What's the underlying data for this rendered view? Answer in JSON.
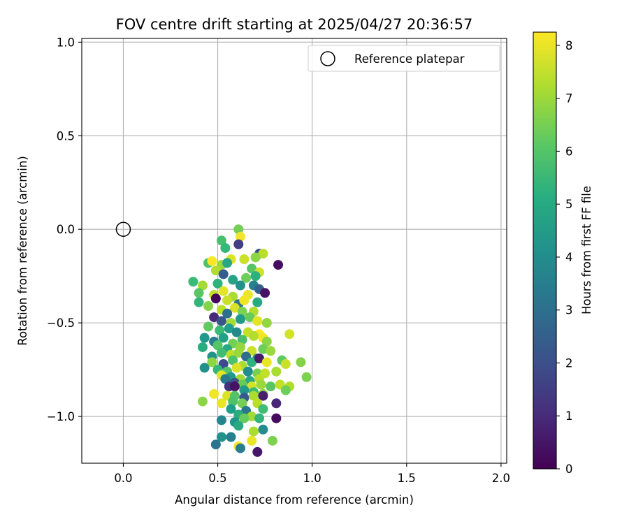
{
  "chart_data": {
    "type": "scatter",
    "title": "FOV centre drift starting at 2025/04/27 20:36:57",
    "xlabel": "Angular distance from reference (arcmin)",
    "ylabel": "Rotation from reference (arcmin)",
    "xlim": [
      -0.22,
      2.03
    ],
    "ylim": [
      -1.25,
      1.02
    ],
    "xticks": [
      0.0,
      0.5,
      1.0,
      1.5,
      2.0
    ],
    "xtick_labels": [
      "0.0",
      "0.5",
      "1.0",
      "1.5",
      "2.0"
    ],
    "yticks": [
      -1.0,
      -0.5,
      0.0,
      0.5,
      1.0
    ],
    "ytick_labels": [
      "−1.0",
      "−0.5",
      "0.0",
      "0.5",
      "1.0"
    ],
    "grid": true,
    "colormap": "viridis",
    "colorbar": {
      "label": "Hours from first FF file",
      "range": [
        0,
        8.25
      ],
      "ticks": [
        0,
        1,
        2,
        3,
        4,
        5,
        6,
        7,
        8
      ],
      "tick_labels": [
        "0",
        "1",
        "2",
        "3",
        "4",
        "5",
        "6",
        "7",
        "8"
      ]
    },
    "legend": {
      "position": "top-right",
      "entries": [
        "Reference platepar"
      ]
    },
    "reference": {
      "x": 0.0,
      "y": 0.0
    },
    "points": [
      {
        "x": 0.61,
        "y": 0.0,
        "c": 6.5
      },
      {
        "x": 0.62,
        "y": -0.04,
        "c": 8.1
      },
      {
        "x": 0.61,
        "y": -0.08,
        "c": 1.5
      },
      {
        "x": 0.52,
        "y": -0.06,
        "c": 5.8
      },
      {
        "x": 0.54,
        "y": -0.1,
        "c": 5.5
      },
      {
        "x": 0.72,
        "y": -0.13,
        "c": 2.0
      },
      {
        "x": 0.74,
        "y": -0.13,
        "c": 7.4
      },
      {
        "x": 0.7,
        "y": -0.15,
        "c": 6.8
      },
      {
        "x": 0.64,
        "y": -0.16,
        "c": 7.6
      },
      {
        "x": 0.57,
        "y": -0.16,
        "c": 7.8
      },
      {
        "x": 0.45,
        "y": -0.18,
        "c": 5.9
      },
      {
        "x": 0.47,
        "y": -0.17,
        "c": 8.2
      },
      {
        "x": 0.52,
        "y": -0.19,
        "c": 7.0
      },
      {
        "x": 0.55,
        "y": -0.18,
        "c": 4.9
      },
      {
        "x": 0.82,
        "y": -0.19,
        "c": 0.3
      },
      {
        "x": 0.68,
        "y": -0.21,
        "c": 6.0
      },
      {
        "x": 0.49,
        "y": -0.22,
        "c": 7.3
      },
      {
        "x": 0.53,
        "y": -0.24,
        "c": 2.4
      },
      {
        "x": 0.72,
        "y": -0.23,
        "c": 7.7
      },
      {
        "x": 0.65,
        "y": -0.26,
        "c": 6.4
      },
      {
        "x": 0.7,
        "y": -0.25,
        "c": 5.2
      },
      {
        "x": 0.37,
        "y": -0.28,
        "c": 5.6
      },
      {
        "x": 0.42,
        "y": -0.3,
        "c": 7.1
      },
      {
        "x": 0.5,
        "y": -0.29,
        "c": 5.3
      },
      {
        "x": 0.58,
        "y": -0.27,
        "c": 4.8
      },
      {
        "x": 0.62,
        "y": -0.3,
        "c": 4.2
      },
      {
        "x": 0.69,
        "y": -0.3,
        "c": 3.6
      },
      {
        "x": 0.72,
        "y": -0.32,
        "c": 2.5
      },
      {
        "x": 0.75,
        "y": -0.34,
        "c": 0.4
      },
      {
        "x": 0.4,
        "y": -0.34,
        "c": 6.1
      },
      {
        "x": 0.48,
        "y": -0.35,
        "c": 7.5
      },
      {
        "x": 0.53,
        "y": -0.33,
        "c": 7.9
      },
      {
        "x": 0.58,
        "y": -0.36,
        "c": 7.2
      },
      {
        "x": 0.66,
        "y": -0.35,
        "c": 8.0
      },
      {
        "x": 0.49,
        "y": -0.37,
        "c": 0.1
      },
      {
        "x": 0.55,
        "y": -0.38,
        "c": 7.6
      },
      {
        "x": 0.61,
        "y": -0.4,
        "c": 3.2
      },
      {
        "x": 0.64,
        "y": -0.38,
        "c": 8.1
      },
      {
        "x": 0.71,
        "y": -0.39,
        "c": 5.0
      },
      {
        "x": 0.4,
        "y": -0.39,
        "c": 5.4
      },
      {
        "x": 0.45,
        "y": -0.41,
        "c": 6.7
      },
      {
        "x": 0.52,
        "y": -0.43,
        "c": 7.4
      },
      {
        "x": 0.59,
        "y": -0.42,
        "c": 7.8
      },
      {
        "x": 0.63,
        "y": -0.44,
        "c": 6.6
      },
      {
        "x": 0.69,
        "y": -0.44,
        "c": 7.3
      },
      {
        "x": 0.55,
        "y": -0.45,
        "c": 3.0
      },
      {
        "x": 0.48,
        "y": -0.47,
        "c": 1.0
      },
      {
        "x": 0.52,
        "y": -0.49,
        "c": 2.2
      },
      {
        "x": 0.57,
        "y": -0.5,
        "c": 7.1
      },
      {
        "x": 0.62,
        "y": -0.48,
        "c": 4.5
      },
      {
        "x": 0.67,
        "y": -0.47,
        "c": 6.3
      },
      {
        "x": 0.71,
        "y": -0.49,
        "c": 7.9
      },
      {
        "x": 0.76,
        "y": -0.5,
        "c": 6.9
      },
      {
        "x": 0.45,
        "y": -0.52,
        "c": 6.2
      },
      {
        "x": 0.51,
        "y": -0.54,
        "c": 5.6
      },
      {
        "x": 0.56,
        "y": -0.53,
        "c": 4.6
      },
      {
        "x": 0.6,
        "y": -0.55,
        "c": 3.9
      },
      {
        "x": 0.66,
        "y": -0.55,
        "c": 7.5
      },
      {
        "x": 0.72,
        "y": -0.56,
        "c": 8.2
      },
      {
        "x": 0.88,
        "y": -0.56,
        "c": 7.7
      },
      {
        "x": 0.43,
        "y": -0.58,
        "c": 4.4
      },
      {
        "x": 0.48,
        "y": -0.6,
        "c": 3.5
      },
      {
        "x": 0.53,
        "y": -0.58,
        "c": 4.7
      },
      {
        "x": 0.58,
        "y": -0.61,
        "c": 6.5
      },
      {
        "x": 0.63,
        "y": -0.59,
        "c": 5.8
      },
      {
        "x": 0.69,
        "y": -0.57,
        "c": 7.3
      },
      {
        "x": 0.74,
        "y": -0.58,
        "c": 8.1
      },
      {
        "x": 0.76,
        "y": -0.6,
        "c": 6.8
      },
      {
        "x": 0.42,
        "y": -0.63,
        "c": 5.1
      },
      {
        "x": 0.5,
        "y": -0.62,
        "c": 6.0
      },
      {
        "x": 0.55,
        "y": -0.64,
        "c": 4.9
      },
      {
        "x": 0.62,
        "y": -0.63,
        "c": 6.9
      },
      {
        "x": 0.68,
        "y": -0.65,
        "c": 7.6
      },
      {
        "x": 0.74,
        "y": -0.64,
        "c": 6.4
      },
      {
        "x": 0.78,
        "y": -0.65,
        "c": 7.0
      },
      {
        "x": 0.47,
        "y": -0.68,
        "c": 4.2
      },
      {
        "x": 0.52,
        "y": -0.66,
        "c": 5.7
      },
      {
        "x": 0.57,
        "y": -0.67,
        "c": 7.4
      },
      {
        "x": 0.61,
        "y": -0.66,
        "c": 7.0
      },
      {
        "x": 0.65,
        "y": -0.68,
        "c": 2.9
      },
      {
        "x": 0.71,
        "y": -0.69,
        "c": 3.7
      },
      {
        "x": 0.47,
        "y": -0.71,
        "c": 6.8
      },
      {
        "x": 0.53,
        "y": -0.72,
        "c": 1.9
      },
      {
        "x": 0.58,
        "y": -0.7,
        "c": 5.9
      },
      {
        "x": 0.63,
        "y": -0.73,
        "c": 7.2
      },
      {
        "x": 0.68,
        "y": -0.71,
        "c": 5.3
      },
      {
        "x": 0.72,
        "y": -0.69,
        "c": 0.6
      },
      {
        "x": 0.76,
        "y": -0.71,
        "c": 8.0
      },
      {
        "x": 0.84,
        "y": -0.7,
        "c": 6.2
      },
      {
        "x": 0.94,
        "y": -0.71,
        "c": 6.7
      },
      {
        "x": 0.86,
        "y": -0.72,
        "c": 7.6
      },
      {
        "x": 0.43,
        "y": -0.74,
        "c": 4.1
      },
      {
        "x": 0.5,
        "y": -0.75,
        "c": 5.5
      },
      {
        "x": 0.55,
        "y": -0.76,
        "c": 6.0
      },
      {
        "x": 0.6,
        "y": -0.74,
        "c": 7.8
      },
      {
        "x": 0.66,
        "y": -0.76,
        "c": 4.0
      },
      {
        "x": 0.71,
        "y": -0.77,
        "c": 6.5
      },
      {
        "x": 0.75,
        "y": -0.77,
        "c": 7.5
      },
      {
        "x": 0.81,
        "y": -0.76,
        "c": 7.2
      },
      {
        "x": 0.52,
        "y": -0.78,
        "c": 7.9
      },
      {
        "x": 0.57,
        "y": -0.79,
        "c": 4.5
      },
      {
        "x": 0.62,
        "y": -0.8,
        "c": 7.1
      },
      {
        "x": 0.67,
        "y": -0.81,
        "c": 5.0
      },
      {
        "x": 0.72,
        "y": -0.8,
        "c": 7.4
      },
      {
        "x": 0.97,
        "y": -0.79,
        "c": 6.6
      },
      {
        "x": 0.54,
        "y": -0.8,
        "c": 3.4
      },
      {
        "x": 0.59,
        "y": -0.82,
        "c": 2.1
      },
      {
        "x": 0.63,
        "y": -0.83,
        "c": 6.3
      },
      {
        "x": 0.68,
        "y": -0.84,
        "c": 7.7
      },
      {
        "x": 0.73,
        "y": -0.83,
        "c": 7.0
      },
      {
        "x": 0.78,
        "y": -0.84,
        "c": 6.1
      },
      {
        "x": 0.83,
        "y": -0.83,
        "c": 7.5
      },
      {
        "x": 0.88,
        "y": -0.84,
        "c": 7.3
      },
      {
        "x": 0.56,
        "y": -0.84,
        "c": 1.2
      },
      {
        "x": 0.59,
        "y": -0.84,
        "c": 0.4
      },
      {
        "x": 0.64,
        "y": -0.86,
        "c": 4.4
      },
      {
        "x": 0.69,
        "y": -0.87,
        "c": 5.6
      },
      {
        "x": 0.74,
        "y": -0.88,
        "c": 6.9
      },
      {
        "x": 0.86,
        "y": -0.86,
        "c": 6.4
      },
      {
        "x": 0.48,
        "y": -0.88,
        "c": 8.1
      },
      {
        "x": 0.55,
        "y": -0.89,
        "c": 7.8
      },
      {
        "x": 0.59,
        "y": -0.89,
        "c": 6.0
      },
      {
        "x": 0.64,
        "y": -0.9,
        "c": 2.3
      },
      {
        "x": 0.69,
        "y": -0.89,
        "c": 7.2
      },
      {
        "x": 0.74,
        "y": -0.89,
        "c": 0.7
      },
      {
        "x": 0.42,
        "y": -0.92,
        "c": 6.8
      },
      {
        "x": 0.52,
        "y": -0.93,
        "c": 8.0
      },
      {
        "x": 0.58,
        "y": -0.92,
        "c": 5.9
      },
      {
        "x": 0.63,
        "y": -0.93,
        "c": 6.5
      },
      {
        "x": 0.71,
        "y": -0.93,
        "c": 7.4
      },
      {
        "x": 0.81,
        "y": -0.93,
        "c": 0.9
      },
      {
        "x": 0.57,
        "y": -0.96,
        "c": 4.6
      },
      {
        "x": 0.65,
        "y": -0.97,
        "c": 3.3
      },
      {
        "x": 0.74,
        "y": -0.96,
        "c": 5.7
      },
      {
        "x": 0.61,
        "y": -0.99,
        "c": 5.1
      },
      {
        "x": 0.68,
        "y": -1.0,
        "c": 7.1
      },
      {
        "x": 0.72,
        "y": -1.01,
        "c": 5.4
      },
      {
        "x": 0.81,
        "y": -1.01,
        "c": 0.2
      },
      {
        "x": 0.52,
        "y": -1.02,
        "c": 3.8
      },
      {
        "x": 0.59,
        "y": -1.03,
        "c": 4.3
      },
      {
        "x": 0.64,
        "y": -1.01,
        "c": 6.3
      },
      {
        "x": 0.61,
        "y": -1.05,
        "c": 5.0
      },
      {
        "x": 0.74,
        "y": -1.07,
        "c": 4.0
      },
      {
        "x": 0.69,
        "y": -1.08,
        "c": 7.2
      },
      {
        "x": 0.52,
        "y": -1.11,
        "c": 4.2
      },
      {
        "x": 0.57,
        "y": -1.11,
        "c": 3.6
      },
      {
        "x": 0.68,
        "y": -1.13,
        "c": 8.0
      },
      {
        "x": 0.79,
        "y": -1.13,
        "c": 6.6
      },
      {
        "x": 0.49,
        "y": -1.15,
        "c": 3.1
      },
      {
        "x": 0.61,
        "y": -1.16,
        "c": 8.2
      },
      {
        "x": 0.62,
        "y": -1.17,
        "c": 3.5
      },
      {
        "x": 0.71,
        "y": -1.19,
        "c": 0.5
      }
    ]
  }
}
